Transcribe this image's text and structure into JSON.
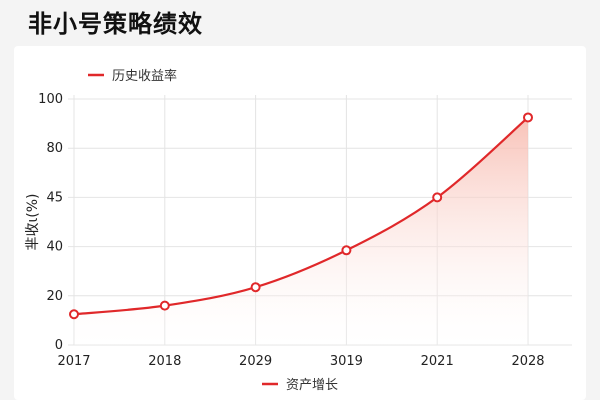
{
  "page": {
    "title": "非小号策略绩效"
  },
  "colors": {
    "line": "#e0282a",
    "fill_top": "#f7b7ab",
    "grid": "#e4e4e4",
    "text": "#222222"
  },
  "chart_data": {
    "type": "area",
    "title": "",
    "xlabel": "",
    "ylabel": "芈收ι(%)",
    "categories": [
      "2017",
      "2018",
      "2029",
      "3019",
      "2021",
      "2028"
    ],
    "y_tick_labels": [
      "0",
      "20",
      "40",
      "45",
      "80",
      "100"
    ],
    "ylim": [
      0,
      100
    ],
    "series": [
      {
        "name": "历史收益率",
        "values": [
          12.5,
          16,
          23.5,
          38.5,
          60,
          92.5
        ]
      }
    ],
    "legend_top": "历史收益率",
    "legend_bottom": "资产增长",
    "grid": true
  }
}
